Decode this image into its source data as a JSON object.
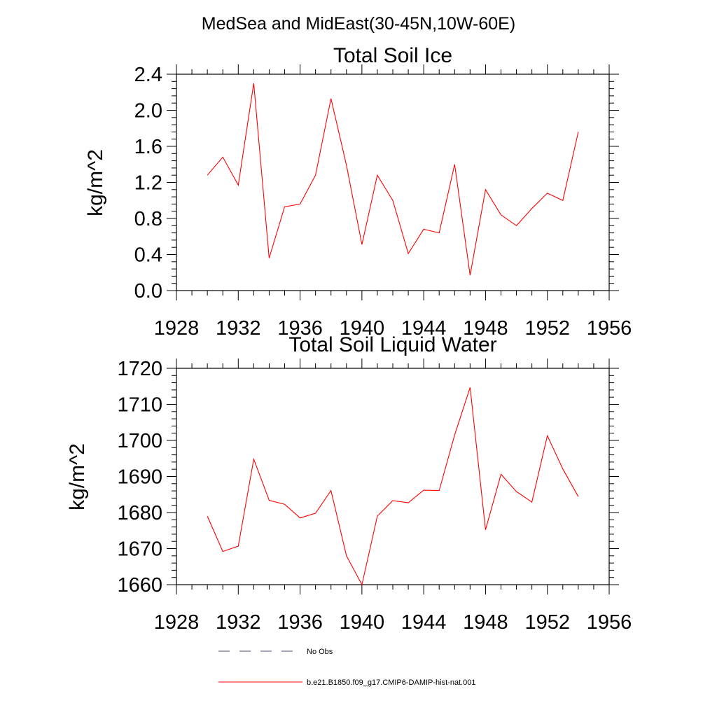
{
  "figure": {
    "suptitle": "MedSea and MidEast(30-45N,10W-60E)"
  },
  "chart_data": [
    {
      "type": "line",
      "title": "Total Soil Ice",
      "xlabel": "",
      "ylabel": "kg/m^2",
      "xlim": [
        1928,
        1956
      ],
      "ylim": [
        0.0,
        2.4
      ],
      "xticks": [
        "1928",
        "1932",
        "1936",
        "1940",
        "1944",
        "1948",
        "1952",
        "1956"
      ],
      "yticks": [
        "0.0",
        "0.4",
        "0.8",
        "1.2",
        "1.6",
        "2.0",
        "2.4"
      ],
      "grid": false,
      "series": [
        {
          "name": "b.e21.B1850.f09_g17.CMIP6-DAMIP-hist-nat.001",
          "color": "#ff0000",
          "x": [
            1930,
            1931,
            1932,
            1933,
            1934,
            1935,
            1936,
            1937,
            1938,
            1939,
            1940,
            1941,
            1942,
            1943,
            1944,
            1945,
            1946,
            1947,
            1948,
            1949,
            1950,
            1951,
            1952,
            1953,
            1954
          ],
          "values": [
            1.28,
            1.48,
            1.17,
            2.3,
            0.36,
            0.93,
            0.96,
            1.28,
            2.13,
            1.39,
            0.51,
            1.28,
            1.0,
            0.41,
            0.68,
            0.64,
            1.4,
            0.17,
            1.12,
            0.84,
            0.72,
            0.91,
            1.08,
            1.0,
            1.76
          ]
        }
      ]
    },
    {
      "type": "line",
      "title": "Total Soil Liquid Water",
      "xlabel": "",
      "ylabel": "kg/m^2",
      "xlim": [
        1928,
        1956
      ],
      "ylim": [
        1660,
        1720
      ],
      "xticks": [
        "1928",
        "1932",
        "1936",
        "1940",
        "1944",
        "1948",
        "1952",
        "1956"
      ],
      "yticks": [
        "1660",
        "1670",
        "1680",
        "1690",
        "1700",
        "1710",
        "1720"
      ],
      "grid": false,
      "series": [
        {
          "name": "b.e21.B1850.f09_g17.CMIP6-DAMIP-hist-nat.001",
          "color": "#ff0000",
          "x": [
            1930,
            1931,
            1932,
            1933,
            1934,
            1935,
            1936,
            1937,
            1938,
            1939,
            1940,
            1941,
            1942,
            1943,
            1944,
            1945,
            1946,
            1947,
            1948,
            1949,
            1950,
            1951,
            1952,
            1953,
            1954
          ],
          "values": [
            1679,
            1669.2,
            1670.7,
            1694.8,
            1683.4,
            1682.3,
            1678.5,
            1679.8,
            1686.1,
            1668,
            1660,
            1679,
            1683.3,
            1682.7,
            1686.2,
            1686.1,
            1701.5,
            1714.7,
            1675.2,
            1690.6,
            1685.8,
            1682.9,
            1701.3,
            1692.1,
            1684.4
          ]
        }
      ]
    }
  ],
  "legend": {
    "placement": "bottom",
    "items": [
      {
        "label": "No Obs",
        "color": "#4a4a7a",
        "style": "dashed"
      },
      {
        "label": "b.e21.B1850.f09_g17.CMIP6-DAMIP-hist-nat.001",
        "color": "#ff0000",
        "style": "solid"
      }
    ]
  }
}
